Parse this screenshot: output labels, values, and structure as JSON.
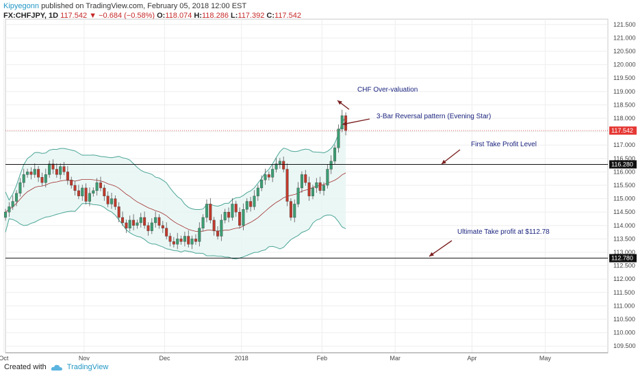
{
  "header": {
    "author": "Kipyegonn",
    "published": "published on TradingView.com, February 05, 2018 12:00 EST",
    "symbol": "FX:CHFJPY, 1D",
    "last": "117.542",
    "change": "−0.684 (−0.58%)",
    "open_label": "O:",
    "open": "118.074",
    "high_label": "H:",
    "high": "118.286",
    "low_label": "L:",
    "low": "117.392",
    "close_label": "C:",
    "close": "117.542"
  },
  "footer": {
    "created_with": "Created with",
    "brand": "TradingView"
  },
  "chart_data": {
    "type": "candlestick",
    "ylim": [
      109.25,
      121.7
    ],
    "y_ticks": [
      "109.500",
      "110.000",
      "110.500",
      "111.000",
      "111.500",
      "112.000",
      "112.500",
      "113.000",
      "113.500",
      "114.000",
      "114.500",
      "115.000",
      "115.500",
      "116.000",
      "116.500",
      "117.000",
      "117.500",
      "118.000",
      "118.500",
      "119.000",
      "119.500",
      "120.000",
      "120.500",
      "121.000",
      "121.500"
    ],
    "x_ticks": [
      {
        "label": "Oct",
        "bar": -0.5
      },
      {
        "label": "Nov",
        "bar": 21.5
      },
      {
        "label": "Dec",
        "bar": 43.5
      },
      {
        "label": "2018",
        "bar": 64.5
      },
      {
        "label": "Feb",
        "bar": 86.5
      },
      {
        "label": "Mar",
        "bar": 106.5
      },
      {
        "label": "Apr",
        "bar": 127.5
      },
      {
        "label": "May",
        "bar": 147.5
      }
    ],
    "closes": [
      114.5,
      114.7,
      114.9,
      115.2,
      115.6,
      115.9,
      116.0,
      115.9,
      116.1,
      115.8,
      115.6,
      115.9,
      116.3,
      116.1,
      115.9,
      116.2,
      116.0,
      115.7,
      115.5,
      115.3,
      115.1,
      115.4,
      114.9,
      115.2,
      115.3,
      115.6,
      115.4,
      115.1,
      114.8,
      115.0,
      114.7,
      114.3,
      114.1,
      113.9,
      114.2,
      114.0,
      114.1,
      114.3,
      114.0,
      113.8,
      114.1,
      114.3,
      114.0,
      113.9,
      113.6,
      113.4,
      113.3,
      113.5,
      113.4,
      113.6,
      113.3,
      113.5,
      113.4,
      113.9,
      114.3,
      114.8,
      114.2,
      113.8,
      113.6,
      114.2,
      114.5,
      114.3,
      114.8,
      114.5,
      114.0,
      114.6,
      114.9,
      114.7,
      115.1,
      115.4,
      115.7,
      115.9,
      115.8,
      116.1,
      116.3,
      116.4,
      116.1,
      114.9,
      114.3,
      114.8,
      115.4,
      115.9,
      115.6,
      115.1,
      115.4,
      115.6,
      115.3,
      115.5,
      116.1,
      116.4,
      116.9,
      117.6,
      118.1,
      117.542
    ],
    "levels": [
      {
        "value": 116.28,
        "label": "116.280"
      },
      {
        "value": 112.78,
        "label": "112.780"
      }
    ],
    "last_price": {
      "value": 117.542,
      "label": "117.542"
    },
    "annotations": [
      {
        "text": "CHF Over-valuation",
        "x": 522,
        "y": 134
      },
      {
        "text": "3-Bar Reversal pattern (Evening Star)",
        "x": 550,
        "y": 173
      },
      {
        "text": "First Take Profit Level",
        "x": 688,
        "y": 214
      },
      {
        "text": "Ultimate Take profit at $112.78",
        "x": 668,
        "y": 342
      }
    ]
  }
}
